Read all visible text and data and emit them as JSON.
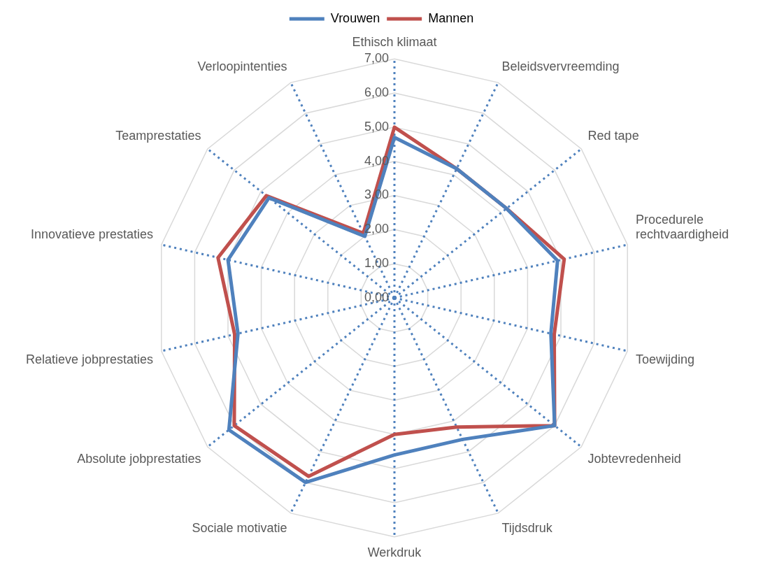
{
  "chart_data": {
    "type": "radar",
    "categories": [
      "Ethisch klimaat",
      "Beleidsvervreemding",
      "Red tape",
      "Procedurele rechtvaardigheid",
      "Toewijding",
      "Jobtevredenheid",
      "Tijdsdruk",
      "Werkdruk",
      "Sociale motivatie",
      "Absolute jobprestaties",
      "Relatieve jobprestaties",
      "Innovatieve prestaties",
      "Teamprestaties",
      "Verloopintenties"
    ],
    "series": [
      {
        "name": "Vrouwen",
        "color": "#4f81bd",
        "values": [
          4.7,
          4.2,
          4.2,
          4.9,
          4.7,
          6.0,
          4.6,
          4.6,
          6.0,
          6.2,
          4.7,
          5.0,
          4.7,
          2.0
        ]
      },
      {
        "name": "Mannen",
        "color": "#c0504d",
        "values": [
          5.0,
          4.2,
          4.2,
          5.1,
          4.8,
          6.0,
          4.2,
          4.0,
          5.8,
          6.0,
          4.8,
          5.3,
          4.8,
          2.1
        ]
      }
    ],
    "ylim": [
      0,
      7
    ],
    "yticks": [
      {
        "value": 0,
        "label": "0,00"
      },
      {
        "value": 1,
        "label": "1,00"
      },
      {
        "value": 2,
        "label": "2,00"
      },
      {
        "value": 3,
        "label": "3,00"
      },
      {
        "value": 4,
        "label": "4,00"
      },
      {
        "value": 5,
        "label": "5,00"
      },
      {
        "value": 6,
        "label": "6,00"
      },
      {
        "value": 7,
        "label": "7,00"
      }
    ],
    "grid": true,
    "legend": "top",
    "marker": "none",
    "line_style": "solid"
  }
}
